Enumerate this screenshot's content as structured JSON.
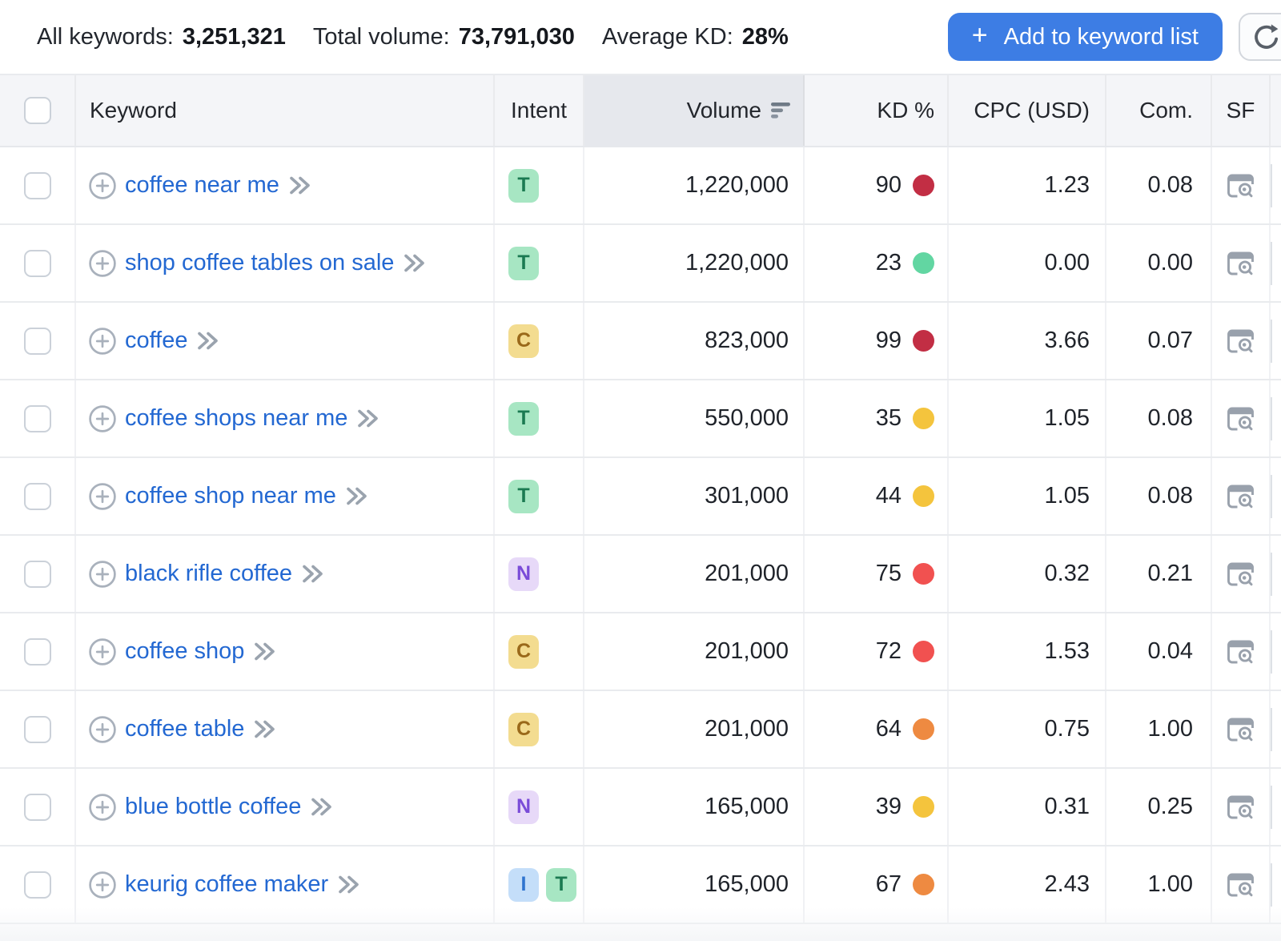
{
  "topbar": {
    "stats": [
      {
        "label": "All keywords:",
        "value": "3,251,321"
      },
      {
        "label": "Total volume:",
        "value": "73,791,030"
      },
      {
        "label": "Average KD:",
        "value": "28%"
      }
    ],
    "add_button": {
      "plus": "+",
      "label": "Add to keyword list"
    },
    "refresh_button": {
      "icon": "refresh-icon"
    }
  },
  "table": {
    "columns": {
      "keyword": "Keyword",
      "intent": "Intent",
      "volume": "Volume",
      "kd": "KD %",
      "cpc": "CPC (USD)",
      "com": "Com.",
      "sf": "SF"
    },
    "sort": {
      "column": "Volume",
      "direction": "desc"
    },
    "rows": [
      {
        "keyword": "coffee near me",
        "intents": [
          "T"
        ],
        "volume": "1,220,000",
        "kd": "90",
        "kd_level": "very-hard",
        "cpc": "1.23",
        "com": "0.08"
      },
      {
        "keyword": "shop coffee tables on sale",
        "intents": [
          "T"
        ],
        "volume": "1,220,000",
        "kd": "23",
        "kd_level": "easy",
        "cpc": "0.00",
        "com": "0.00"
      },
      {
        "keyword": "coffee",
        "intents": [
          "C"
        ],
        "volume": "823,000",
        "kd": "99",
        "kd_level": "very-hard",
        "cpc": "3.66",
        "com": "0.07"
      },
      {
        "keyword": "coffee shops near me",
        "intents": [
          "T"
        ],
        "volume": "550,000",
        "kd": "35",
        "kd_level": "possible",
        "cpc": "1.05",
        "com": "0.08"
      },
      {
        "keyword": "coffee shop near me",
        "intents": [
          "T"
        ],
        "volume": "301,000",
        "kd": "44",
        "kd_level": "possible",
        "cpc": "1.05",
        "com": "0.08"
      },
      {
        "keyword": "black rifle coffee",
        "intents": [
          "N"
        ],
        "volume": "201,000",
        "kd": "75",
        "kd_level": "hard",
        "cpc": "0.32",
        "com": "0.21"
      },
      {
        "keyword": "coffee shop",
        "intents": [
          "C"
        ],
        "volume": "201,000",
        "kd": "72",
        "kd_level": "hard",
        "cpc": "1.53",
        "com": "0.04"
      },
      {
        "keyword": "coffee table",
        "intents": [
          "C"
        ],
        "volume": "201,000",
        "kd": "64",
        "kd_level": "difficult",
        "cpc": "0.75",
        "com": "1.00"
      },
      {
        "keyword": "blue bottle coffee",
        "intents": [
          "N"
        ],
        "volume": "165,000",
        "kd": "39",
        "kd_level": "possible",
        "cpc": "0.31",
        "com": "0.25"
      },
      {
        "keyword": "keurig coffee maker",
        "intents": [
          "I",
          "T"
        ],
        "volume": "165,000",
        "kd": "67",
        "kd_level": "difficult",
        "cpc": "2.43",
        "com": "1.00"
      }
    ]
  },
  "colors": {
    "accent_blue": "#3d7de4",
    "link_blue": "#2368d2",
    "kd_levels": {
      "very-hard": "#c22e44",
      "hard": "#f15150",
      "difficult": "#ee8a41",
      "possible": "#f4c43d",
      "easy": "#62d6a2"
    },
    "intent": {
      "T": {
        "bg": "#a7e6c3",
        "text": "#1b7a52"
      },
      "C": {
        "bg": "#f3dc90",
        "text": "#9a691a"
      },
      "N": {
        "bg": "#e7d9f8",
        "text": "#7a4bd8"
      },
      "I": {
        "bg": "#c4def9",
        "text": "#2f74cf"
      }
    }
  }
}
